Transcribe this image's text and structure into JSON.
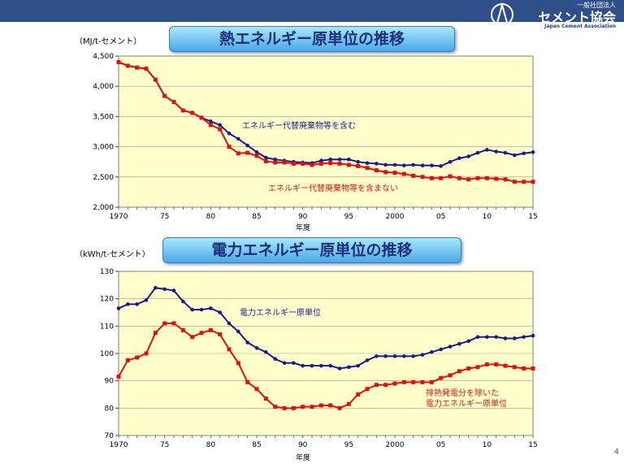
{
  "header": {
    "org_small": "一般社団法人",
    "org_name": "セメント協会",
    "org_en": "Japan Cement Association"
  },
  "page_number": "4",
  "colors": {
    "series_total": "#1a1a8c",
    "series_sub": "#e01010",
    "plot_bg": "#ffffcc"
  },
  "chart_data": [
    {
      "type": "line",
      "title": "熱エネルギー原単位の推移",
      "unit_label": "（MJ/t-セメント）",
      "xlabel": "年度",
      "xlim": [
        1970,
        2015
      ],
      "ylim": [
        2000,
        4500
      ],
      "y_ticks": [
        "2,000",
        "2,500",
        "3,000",
        "3,500",
        "4,000",
        "4,500"
      ],
      "x_ticks": [
        "1970",
        "75",
        "80",
        "85",
        "90",
        "95",
        "2000",
        "05",
        "10",
        "15"
      ],
      "x": [
        1970,
        1971,
        1972,
        1973,
        1974,
        1975,
        1976,
        1977,
        1978,
        1979,
        1980,
        1981,
        1982,
        1983,
        1984,
        1985,
        1986,
        1987,
        1988,
        1989,
        1990,
        1991,
        1992,
        1993,
        1994,
        1995,
        1996,
        1997,
        1998,
        1999,
        2000,
        2001,
        2002,
        2003,
        2004,
        2005,
        2006,
        2007,
        2008,
        2009,
        2010,
        2011,
        2012,
        2013,
        2014,
        2015
      ],
      "series": [
        {
          "name": "エネルギー代替廃棄物等を含む",
          "values": [
            4400,
            4340,
            4310,
            4290,
            4110,
            3840,
            3740,
            3600,
            3560,
            3480,
            3420,
            3360,
            3220,
            3130,
            3020,
            2910,
            2820,
            2790,
            2770,
            2750,
            2740,
            2730,
            2770,
            2790,
            2790,
            2790,
            2750,
            2730,
            2720,
            2700,
            2700,
            2690,
            2700,
            2690,
            2690,
            2680,
            2750,
            2810,
            2840,
            2900,
            2950,
            2920,
            2900,
            2860,
            2890,
            2910
          ]
        },
        {
          "name": "エネルギー代替廃棄物等を含まない",
          "values": [
            4400,
            4340,
            4310,
            4290,
            4110,
            3840,
            3740,
            3600,
            3560,
            3480,
            3360,
            3290,
            3000,
            2890,
            2900,
            2850,
            2760,
            2740,
            2740,
            2720,
            2720,
            2700,
            2720,
            2730,
            2720,
            2700,
            2680,
            2650,
            2610,
            2580,
            2570,
            2550,
            2520,
            2500,
            2480,
            2480,
            2510,
            2480,
            2460,
            2480,
            2480,
            2470,
            2460,
            2420,
            2420,
            2420
          ]
        }
      ]
    },
    {
      "type": "line",
      "title": "電力エネルギー原単位の推移",
      "unit_label": "（kWh/t-セメント）",
      "xlabel": "年度",
      "xlim": [
        1970,
        2015
      ],
      "ylim": [
        70,
        130
      ],
      "y_ticks": [
        "70",
        "80",
        "90",
        "100",
        "110",
        "120",
        "130"
      ],
      "x_ticks": [
        "1970",
        "75",
        "80",
        "85",
        "90",
        "95",
        "2000",
        "05",
        "10",
        "15"
      ],
      "x": [
        1970,
        1971,
        1972,
        1973,
        1974,
        1975,
        1976,
        1977,
        1978,
        1979,
        1980,
        1981,
        1982,
        1983,
        1984,
        1985,
        1986,
        1987,
        1988,
        1989,
        1990,
        1991,
        1992,
        1993,
        1994,
        1995,
        1996,
        1997,
        1998,
        1999,
        2000,
        2001,
        2002,
        2003,
        2004,
        2005,
        2006,
        2007,
        2008,
        2009,
        2010,
        2011,
        2012,
        2013,
        2014,
        2015
      ],
      "series": [
        {
          "name": "電力エネルギー原単位",
          "values": [
            116.5,
            118,
            118,
            119.5,
            124,
            123.5,
            123,
            119,
            116,
            116,
            116.5,
            115,
            111,
            108,
            104,
            102,
            100.5,
            98,
            96.5,
            96.5,
            95.5,
            95.5,
            95.5,
            95.5,
            94.5,
            95,
            95.5,
            97.5,
            99,
            99,
            99,
            99,
            99,
            99.5,
            100.5,
            101.5,
            102.5,
            103.5,
            104.5,
            106,
            106,
            106,
            105.5,
            105.5,
            106,
            106.5
          ]
        },
        {
          "name": "排熱発電分を除いた 電力エネルギー原単位",
          "values": [
            91.5,
            97.5,
            98.5,
            100,
            107.5,
            111,
            111,
            108.5,
            106,
            107.5,
            108.5,
            107,
            101.5,
            96.5,
            89.5,
            87,
            83.5,
            80.5,
            80,
            80,
            80.5,
            80.5,
            81,
            81,
            80,
            81.5,
            85,
            87,
            88.5,
            88.5,
            89,
            89.5,
            89.5,
            89.5,
            89.5,
            91,
            92,
            93.5,
            94.5,
            95,
            96,
            96,
            95.5,
            95,
            94.5,
            94.5
          ]
        }
      ]
    }
  ]
}
